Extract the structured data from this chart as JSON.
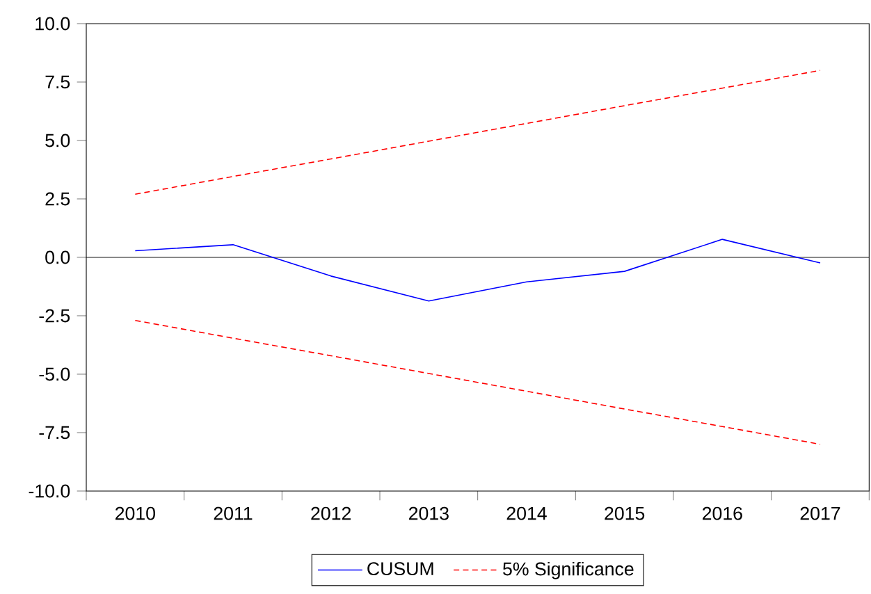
{
  "chart_data": {
    "type": "line",
    "categories": [
      "2010",
      "2011",
      "2012",
      "2013",
      "2014",
      "2015",
      "2016",
      "2017"
    ],
    "series": [
      {
        "name": "CUSUM",
        "color": "#0000ff",
        "line_style": "solid",
        "values": [
          0.28,
          0.54,
          -0.8,
          -1.87,
          -1.05,
          -0.6,
          0.77,
          -0.24
        ]
      },
      {
        "name": "5% Significance",
        "color": "#ff0000",
        "line_style": "dashed",
        "values": [
          2.7,
          3.46,
          4.21,
          4.97,
          5.73,
          6.49,
          7.24,
          8.0
        ]
      },
      {
        "color": "#ff0000",
        "line_style": "dashed",
        "values": [
          -2.7,
          -3.46,
          -4.21,
          -4.97,
          -5.73,
          -6.49,
          -7.24,
          -8.0
        ]
      }
    ],
    "ylim": [
      -10,
      10
    ],
    "yticks": [
      {
        "value": -10,
        "label": "-10.0"
      },
      {
        "value": -7.5,
        "label": "-7.5"
      },
      {
        "value": -5,
        "label": "-5.0"
      },
      {
        "value": -2.5,
        "label": "-2.5"
      },
      {
        "value": 0,
        "label": "0.0"
      },
      {
        "value": 2.5,
        "label": "2.5"
      },
      {
        "value": 5,
        "label": "5.0"
      },
      {
        "value": 7.5,
        "label": "7.5"
      },
      {
        "value": 10,
        "label": "10.0"
      }
    ],
    "ref_lines": [
      {
        "axis": "y",
        "value": 0,
        "color": "#000000"
      }
    ],
    "grid": false,
    "legend": "bottom",
    "marker": "none"
  }
}
